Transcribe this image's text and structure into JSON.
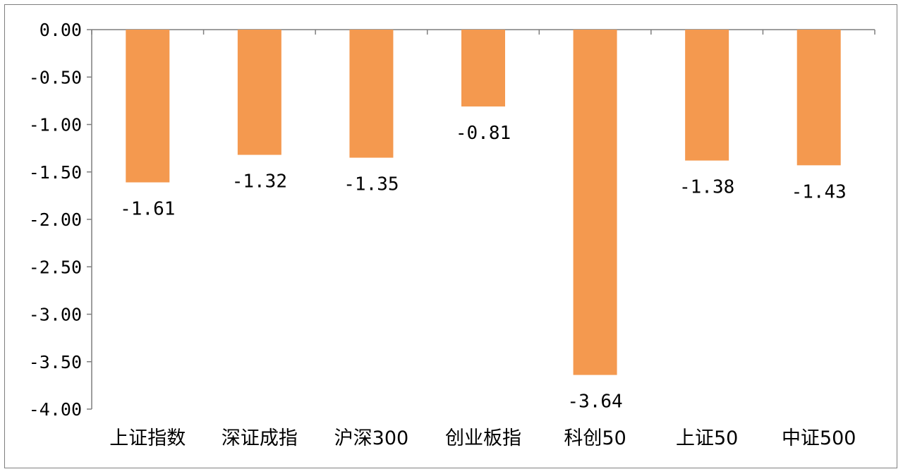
{
  "chart_data": {
    "type": "bar",
    "title": "",
    "xlabel": "",
    "ylabel": "",
    "categories": [
      "上证指数",
      "深证成指",
      "沪深300",
      "创业板指",
      "科创50",
      "上证50",
      "中证500"
    ],
    "values": [
      -1.61,
      -1.32,
      -1.35,
      -0.81,
      -3.64,
      -1.38,
      -1.43
    ],
    "value_labels": [
      "-1.61",
      "-1.32",
      "-1.35",
      "-0.81",
      "-3.64",
      "-1.38",
      "-1.43"
    ],
    "ylim": [
      -4.0,
      0.0
    ],
    "yticks": [
      0.0,
      -0.5,
      -1.0,
      -1.5,
      -2.0,
      -2.5,
      -3.0,
      -3.5,
      -4.0
    ],
    "ytick_labels": [
      "0.00",
      "-0.50",
      "-1.00",
      "-1.50",
      "-2.00",
      "-2.50",
      "-3.00",
      "-3.50",
      "-4.00"
    ],
    "bar_color": "#f4994f",
    "axis_color": "#7f7f7f",
    "grid": false,
    "legend": "none"
  }
}
